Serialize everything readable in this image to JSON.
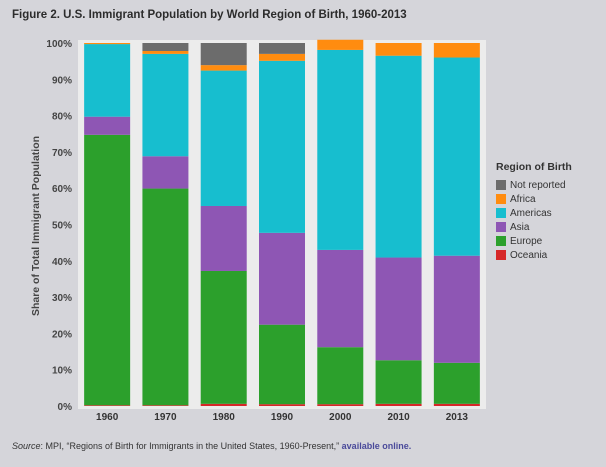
{
  "figure_title": "Figure 2. U.S. Immigrant Population by World Region of Birth, 1960-2013",
  "source": {
    "label": "Source",
    "text": ": MPI, “Regions of Birth for Immigrants in the United States, 1960-Present,” ",
    "link_text": "available online."
  },
  "chart_data": {
    "type": "bar",
    "stacked": true,
    "categories": [
      "1960",
      "1970",
      "1980",
      "1990",
      "2000",
      "2010",
      "2013"
    ],
    "ylabel": "Share of Total Immigrant Population",
    "ylim": [
      0,
      100
    ],
    "yticks": [
      0,
      10,
      20,
      30,
      40,
      50,
      60,
      70,
      80,
      90,
      100
    ],
    "ytick_labels": [
      "0%",
      "10%",
      "20%",
      "30%",
      "40%",
      "50%",
      "60%",
      "70%",
      "80%",
      "90%",
      "100%"
    ],
    "grid": false,
    "legend": {
      "title": "Region of Birth",
      "position": "right"
    },
    "series": [
      {
        "name": "Oceania",
        "color": "#d62728",
        "values": [
          0.2,
          0.2,
          0.6,
          0.5,
          0.5,
          0.6,
          0.6
        ]
      },
      {
        "name": "Europe",
        "color": "#2ca02c",
        "values": [
          74.5,
          59.7,
          36.6,
          21.9,
          15.7,
          12.0,
          11.3
        ]
      },
      {
        "name": "Asia",
        "color": "#8e56b4",
        "values": [
          5.0,
          8.9,
          17.9,
          25.3,
          26.8,
          28.3,
          29.5
        ]
      },
      {
        "name": "Americas",
        "color": "#17becf",
        "values": [
          20.0,
          28.2,
          37.3,
          47.4,
          55.1,
          55.6,
          54.6
        ]
      },
      {
        "name": "Africa",
        "color": "#ff8c0f",
        "values": [
          0.3,
          0.8,
          1.5,
          1.9,
          2.8,
          3.5,
          4.0
        ]
      },
      {
        "name": "Not reported",
        "color": "#6c6c6c",
        "values": [
          0.0,
          2.2,
          6.1,
          3.0,
          0.0,
          0.0,
          0.0
        ]
      }
    ],
    "legend_order": [
      "Not reported",
      "Africa",
      "Americas",
      "Asia",
      "Europe",
      "Oceania"
    ]
  }
}
